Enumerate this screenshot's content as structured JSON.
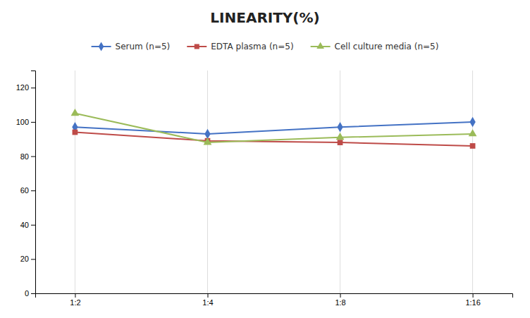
{
  "chart_data": {
    "type": "line",
    "title": "LINEARITY(%)",
    "categories": [
      "1:2",
      "1:4",
      "1:8",
      "1:16"
    ],
    "series": [
      {
        "name": "Serum (n=5)",
        "color": "#4472C4",
        "marker": "diamond",
        "values": [
          97,
          93,
          97,
          100
        ]
      },
      {
        "name": "EDTA plasma (n=5)",
        "color": "#BE4B48",
        "marker": "square",
        "values": [
          94,
          89,
          88,
          86
        ]
      },
      {
        "name": "Cell culture media (n=5)",
        "color": "#9BBB59",
        "marker": "triangle",
        "values": [
          105,
          88,
          91,
          93
        ]
      }
    ],
    "ylim": [
      0,
      130
    ],
    "yticks": [
      0,
      20,
      40,
      60,
      80,
      100,
      120
    ],
    "grid": "x",
    "legend": "top"
  }
}
